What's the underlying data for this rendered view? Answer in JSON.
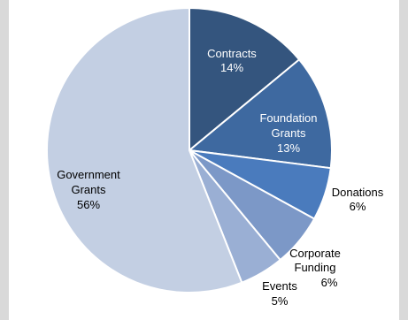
{
  "chart_data": {
    "type": "pie",
    "title": "",
    "start_angle_deg": 0,
    "direction": "clockwise",
    "slices": [
      {
        "name": "Contracts",
        "value": 14,
        "label": "14%",
        "color": "#34557e",
        "text_color": "#ffffff"
      },
      {
        "name": "Foundation Grants",
        "value": 13,
        "label": "13%",
        "color": "#3e69a0",
        "text_color": "#ffffff"
      },
      {
        "name": "Donations",
        "value": 6,
        "label": "6%",
        "color": "#4a7bbd",
        "text_color": "#000000"
      },
      {
        "name": "Corporate Funding",
        "value": 6,
        "label": "6%",
        "color": "#7c98c7",
        "text_color": "#000000"
      },
      {
        "name": "Events",
        "value": 5,
        "label": "5%",
        "color": "#9aafd4",
        "text_color": "#000000"
      },
      {
        "name": "Government Grants",
        "value": 56,
        "label": "56%",
        "color": "#c3cfe3",
        "text_color": "#000000"
      }
    ]
  }
}
